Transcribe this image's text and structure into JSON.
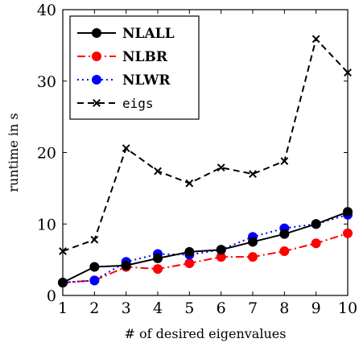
{
  "chart_data": {
    "type": "line",
    "title": "",
    "xlabel": "# of desired eigenvalues",
    "ylabel": "runtime in s",
    "xlim": [
      1,
      10
    ],
    "ylim": [
      0,
      40
    ],
    "x_ticks": [
      1,
      2,
      3,
      4,
      5,
      6,
      7,
      8,
      9,
      10
    ],
    "y_ticks": [
      0,
      10,
      20,
      30,
      40
    ],
    "grid": false,
    "legend_position": "top-left",
    "x": [
      1,
      2,
      3,
      4,
      5,
      6,
      7,
      8,
      9,
      10
    ],
    "series": [
      {
        "name": "NLALL",
        "values": [
          1.8,
          4.0,
          4.2,
          5.2,
          6.1,
          6.4,
          7.5,
          8.6,
          10.0,
          11.7
        ],
        "color": "#000000",
        "line_style": "solid",
        "marker": "circle"
      },
      {
        "name": "NLBR",
        "values": [
          1.8,
          2.1,
          4.0,
          3.7,
          4.5,
          5.4,
          5.4,
          6.2,
          7.3,
          8.7
        ],
        "color": "#ff0000",
        "line_style": "dash-dot",
        "marker": "circle"
      },
      {
        "name": "NLWR",
        "values": [
          1.8,
          2.1,
          4.7,
          5.8,
          5.7,
          6.4,
          8.2,
          9.4,
          10.0,
          11.3
        ],
        "color": "#0000ff",
        "line_style": "dotted",
        "marker": "circle"
      },
      {
        "name": "eigs",
        "values": [
          6.2,
          7.8,
          20.6,
          17.4,
          15.7,
          17.9,
          17.0,
          18.8,
          35.9,
          31.2
        ],
        "color": "#000000",
        "line_style": "dashed",
        "marker": "x"
      }
    ]
  }
}
